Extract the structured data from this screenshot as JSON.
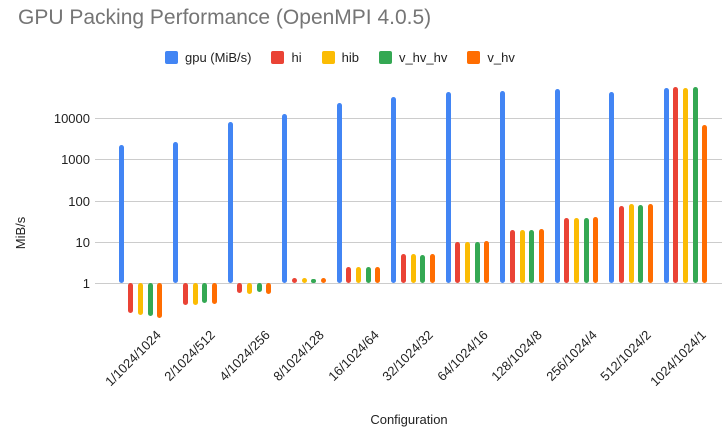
{
  "chart_data": {
    "type": "bar",
    "title": "GPU Packing Performance (OpenMPI 4.0.5)",
    "xlabel": "Configuration",
    "ylabel": "MiB/s",
    "y_scale": "log",
    "y_ticks": [
      1,
      10,
      100,
      1000,
      10000
    ],
    "ylim": [
      0.1,
      60000
    ],
    "baseline": 1,
    "grid": true,
    "legend_position": "top",
    "categories": [
      "1/1024/1024",
      "2/1024/512",
      "4/1024/256",
      "8/1024/128",
      "16/1024/64",
      "32/1024/32",
      "64/1024/16",
      "128/1024/8",
      "256/1024/4",
      "512/1024/2",
      "1024/1024/1"
    ],
    "series": [
      {
        "name": "gpu (MiB/s)",
        "color": "#4285F4",
        "values": [
          2200,
          2600,
          8200,
          12500,
          23000,
          33000,
          44000,
          46500,
          50000,
          44000,
          55000
        ]
      },
      {
        "name": "hi",
        "color": "#EA4335",
        "values": [
          0.19,
          0.3,
          0.58,
          1.3,
          2.45,
          5.1,
          10,
          19.5,
          37,
          75,
          58000
        ]
      },
      {
        "name": "hib",
        "color": "#FBBC04",
        "values": [
          0.17,
          0.29,
          0.55,
          1.3,
          2.5,
          5.0,
          10,
          19.5,
          38,
          85,
          53000
        ]
      },
      {
        "name": "v_hv_hv",
        "color": "#34A853",
        "values": [
          0.16,
          0.32,
          0.6,
          1.25,
          2.45,
          4.9,
          10,
          19.5,
          38,
          78,
          57000
        ]
      },
      {
        "name": "v_hv",
        "color": "#FF6D01",
        "values": [
          0.14,
          0.31,
          0.55,
          1.3,
          2.4,
          5.0,
          10.2,
          20,
          39,
          82,
          6800
        ]
      }
    ]
  }
}
